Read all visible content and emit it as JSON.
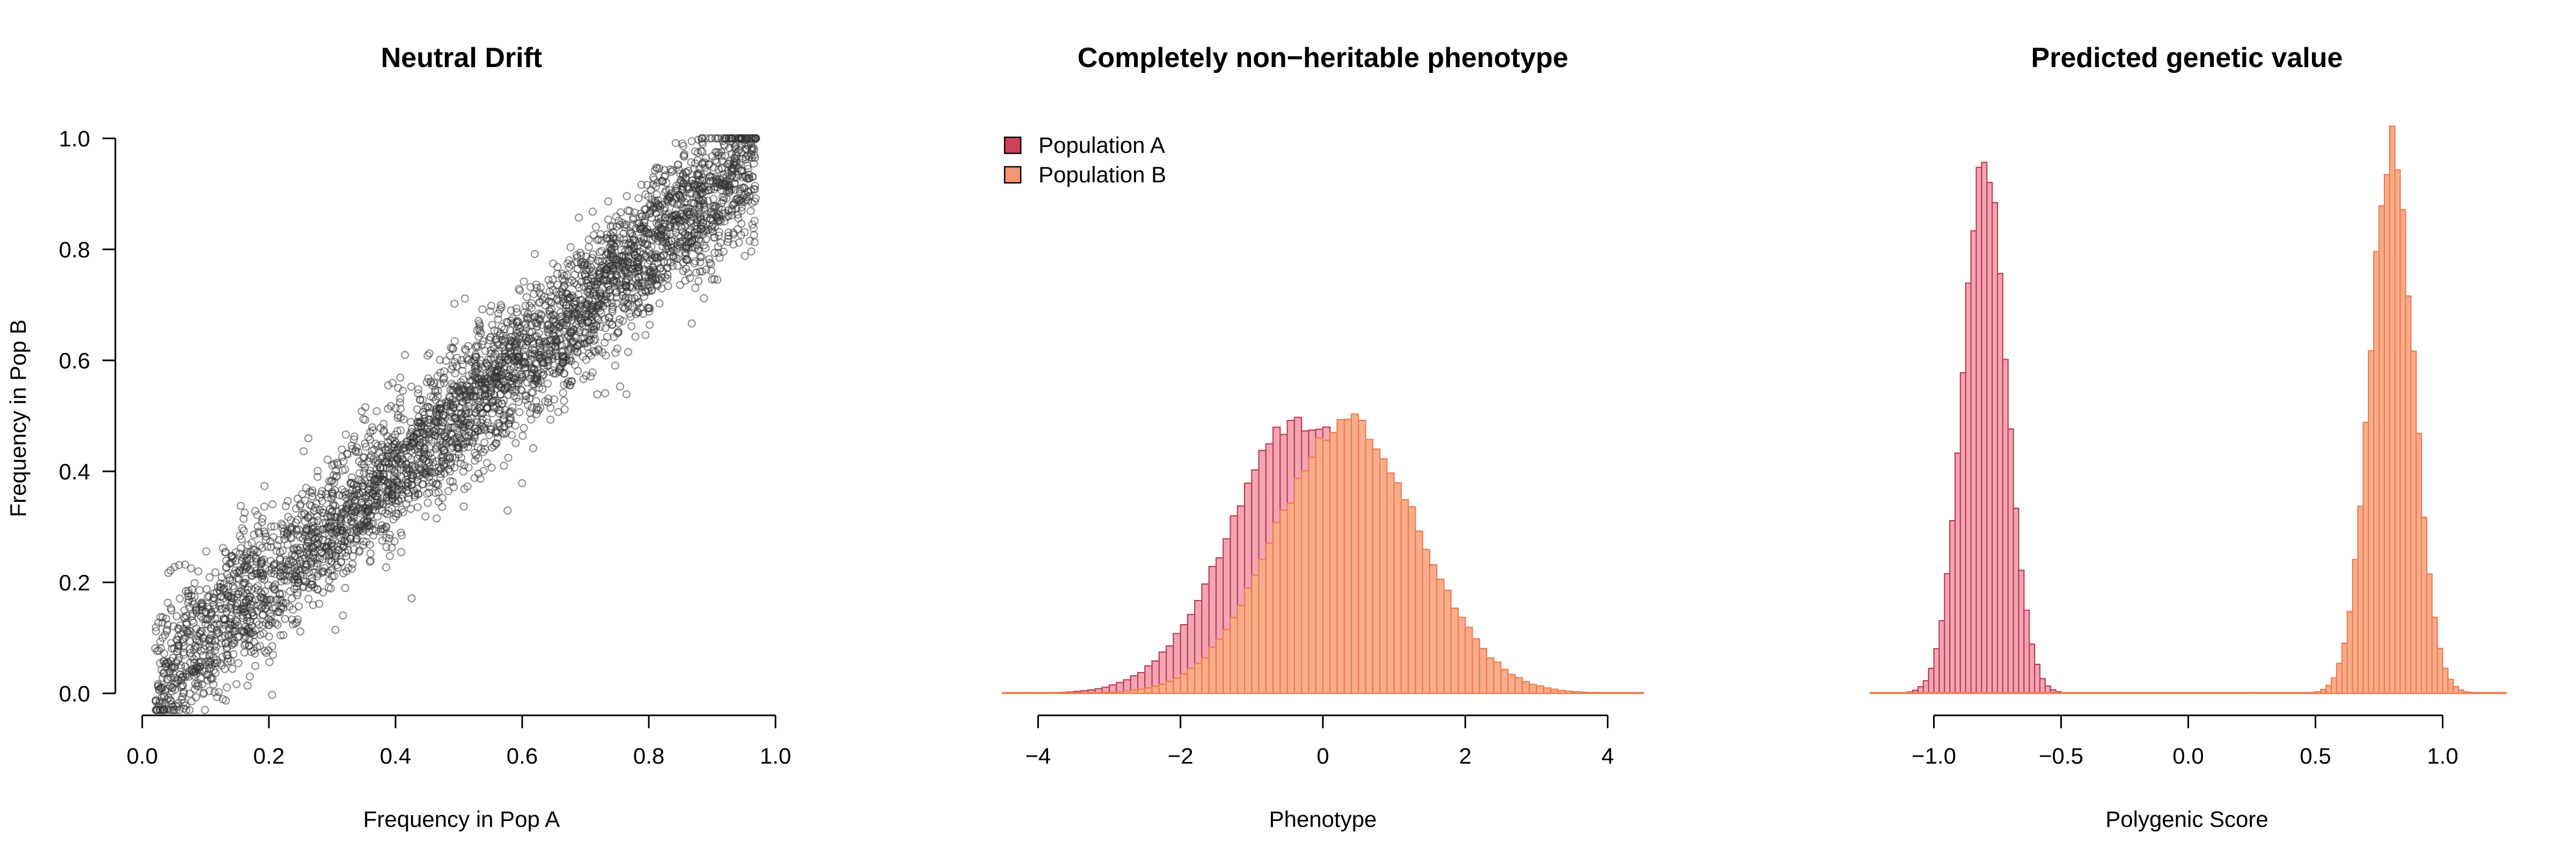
{
  "colors": {
    "axis": "#000000",
    "point": "#333333",
    "pop_a_fill": "#f2a5b3",
    "pop_a_stroke": "#c03a55",
    "pop_b_fill": "#f8ad8b",
    "pop_b_stroke": "#ef7a4c",
    "legend_a": "#d0405c",
    "legend_b": "#f59670"
  },
  "chart_data": [
    {
      "type": "scatter",
      "title": "Neutral Drift",
      "xlabel": "Frequency in Pop A",
      "ylabel": "Frequency in Pop B",
      "xlim": [
        0,
        1
      ],
      "ylim": [
        0,
        1
      ],
      "xticks": [
        "0.0",
        "0.2",
        "0.4",
        "0.6",
        "0.8",
        "1.0"
      ],
      "yticks": [
        "0.0",
        "0.2",
        "0.4",
        "0.6",
        "0.8",
        "1.0"
      ],
      "n_points": 4000,
      "relationship": "y ≈ x, sd ≈ 0.06",
      "points_sample": [
        [
          0.1,
          0.12
        ],
        [
          0.2,
          0.21
        ],
        [
          0.3,
          0.31
        ],
        [
          0.4,
          0.41
        ],
        [
          0.5,
          0.5
        ],
        [
          0.6,
          0.61
        ],
        [
          0.7,
          0.7
        ],
        [
          0.8,
          0.8
        ],
        [
          0.9,
          0.89
        ]
      ]
    },
    {
      "type": "histogram",
      "title": "Completely non−heritable phenotype",
      "xlabel": "Phenotype",
      "xlim": [
        -4.5,
        4.5
      ],
      "xticks": [
        "−4",
        "−2",
        "0",
        "2",
        "4"
      ],
      "legend": [
        {
          "label": "Population A",
          "color": "#d0405c"
        },
        {
          "label": "Population B",
          "color": "#f59670"
        }
      ],
      "legend_position": "top-left",
      "series": [
        {
          "name": "Population A",
          "mean": -0.3,
          "sd": 1.0,
          "peak_density": 0.4
        },
        {
          "name": "Population B",
          "mean": 0.35,
          "sd": 1.0,
          "peak_density": 0.4
        }
      ]
    },
    {
      "type": "histogram",
      "title": "Predicted genetic value",
      "xlabel": "Polygenic Score",
      "xlim": [
        -1.25,
        1.25
      ],
      "xticks": [
        "−1.0",
        "−0.5",
        "0.0",
        "0.5",
        "1.0"
      ],
      "series": [
        {
          "name": "Population A",
          "mean": -0.8,
          "sd": 0.085
        },
        {
          "name": "Population B",
          "mean": 0.8,
          "sd": 0.085
        }
      ]
    }
  ]
}
